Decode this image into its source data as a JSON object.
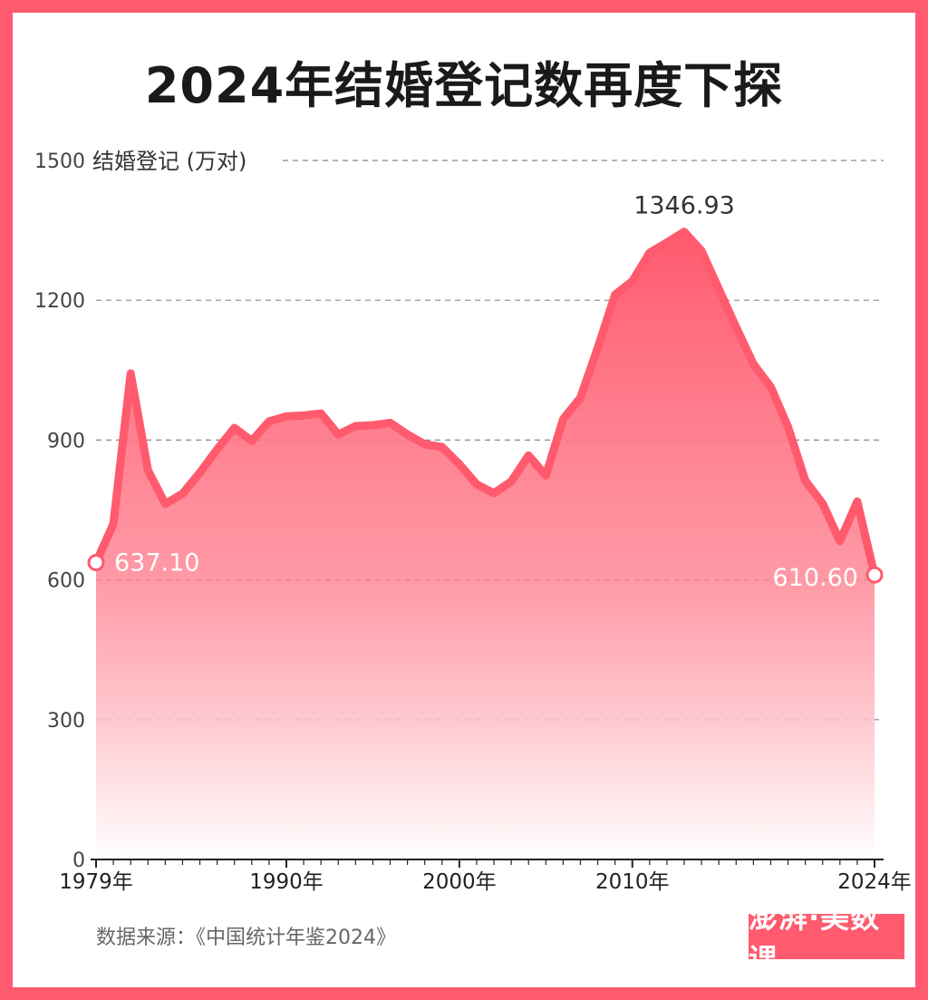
{
  "title": "2024年结婚登记数再度下探",
  "source": "数据来源：《中国统计年鉴2024》",
  "logo": "澎湃·美数课",
  "colors": {
    "frame": "#ff5a6e",
    "line": "#ff5a6e",
    "text": "#1a1a1a"
  },
  "chart_data": {
    "type": "area",
    "ylabel": "结婚登记 (万对)",
    "ylim": [
      0,
      1500
    ],
    "yticks": [
      0,
      300,
      600,
      900,
      1200,
      1500
    ],
    "xticks": [
      {
        "x": 1979,
        "label": "1979年"
      },
      {
        "x": 1990,
        "label": "1990年"
      },
      {
        "x": 2000,
        "label": "2000年"
      },
      {
        "x": 2010,
        "label": "2010年"
      },
      {
        "x": 2024,
        "label": "2024年"
      }
    ],
    "grid": true,
    "x": [
      1979,
      1980,
      1981,
      1982,
      1983,
      1984,
      1985,
      1986,
      1987,
      1988,
      1989,
      1990,
      1991,
      1992,
      1993,
      1994,
      1995,
      1996,
      1997,
      1998,
      1999,
      2000,
      2001,
      2002,
      2003,
      2004,
      2005,
      2006,
      2007,
      2008,
      2009,
      2010,
      2011,
      2012,
      2013,
      2014,
      2015,
      2016,
      2017,
      2018,
      2019,
      2020,
      2021,
      2022,
      2023,
      2024
    ],
    "values": [
      637.1,
      720,
      1043,
      835,
      763,
      785,
      830,
      880,
      926,
      898,
      940,
      951,
      953,
      957,
      912,
      930,
      932,
      937,
      912,
      891,
      885,
      848,
      805,
      786,
      811,
      867,
      824,
      945,
      991,
      1098,
      1212,
      1241,
      1302,
      1324,
      1346.93,
      1306,
      1224,
      1142,
      1063,
      1014,
      928,
      813,
      764,
      683,
      768,
      610.6
    ],
    "annotations": [
      {
        "x": 1979,
        "label": "637.10"
      },
      {
        "x": 2013,
        "label": "1346.93"
      },
      {
        "x": 2024,
        "label": "610.60"
      }
    ]
  }
}
